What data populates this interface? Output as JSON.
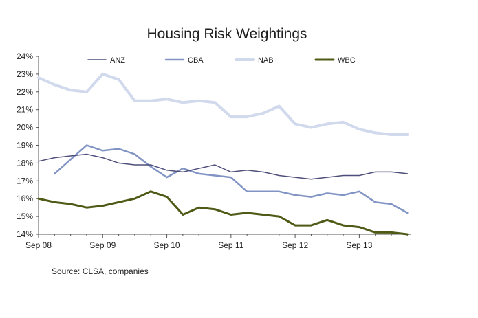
{
  "chart_data": {
    "type": "line",
    "title": "Housing Risk Weightings",
    "xlabel": "",
    "ylabel": "",
    "source": "Source: CLSA, companies",
    "ylim": [
      0.14,
      0.24
    ],
    "y_ticks": [
      "24%",
      "23%",
      "22%",
      "21%",
      "20%",
      "19%",
      "18%",
      "17%",
      "16%",
      "15%",
      "14%"
    ],
    "x_ticks": [
      "Sep 08",
      "Sep 09",
      "Sep 10",
      "Sep 11",
      "Sep 12",
      "Sep 13"
    ],
    "x_unit": "quarter",
    "x_range": [
      0,
      23
    ],
    "grid": false,
    "legend_position": "top",
    "series": [
      {
        "name": "ANZ",
        "color": "#4e4e7a",
        "x": [
          0,
          1,
          2,
          3,
          4,
          5,
          6,
          7,
          8,
          9,
          10,
          11,
          12,
          13,
          14,
          15,
          16,
          17,
          18,
          19,
          20,
          21,
          22,
          23
        ],
        "values": [
          0.181,
          0.183,
          0.184,
          0.185,
          0.183,
          0.18,
          0.179,
          0.179,
          0.176,
          0.175,
          0.177,
          0.179,
          0.175,
          0.176,
          0.175,
          0.173,
          0.172,
          0.171,
          0.172,
          0.173,
          0.173,
          0.175,
          0.175,
          0.174
        ]
      },
      {
        "name": "CBA",
        "color": "#8194c4",
        "x": [
          1,
          2,
          3,
          4,
          5,
          6,
          7,
          8,
          9,
          10,
          11,
          12,
          13,
          14,
          15,
          16,
          17,
          18,
          19,
          20,
          21,
          22,
          23
        ],
        "values": [
          0.174,
          0.182,
          0.19,
          0.187,
          0.188,
          0.185,
          0.178,
          0.172,
          0.177,
          0.174,
          0.173,
          0.172,
          0.164,
          0.164,
          0.164,
          0.162,
          0.161,
          0.163,
          0.162,
          0.164,
          0.158,
          0.157,
          0.152
        ]
      },
      {
        "name": "NAB",
        "color": "#d1d9ec",
        "x": [
          0,
          1,
          2,
          3,
          4,
          5,
          6,
          7,
          8,
          9,
          10,
          11,
          12,
          13,
          14,
          15,
          16,
          17,
          18,
          19,
          20,
          21,
          22,
          23
        ],
        "values": [
          0.228,
          0.224,
          0.221,
          0.22,
          0.23,
          0.227,
          0.215,
          0.215,
          0.216,
          0.214,
          0.215,
          0.214,
          0.206,
          0.206,
          0.208,
          0.212,
          0.202,
          0.2,
          0.202,
          0.203,
          0.199,
          0.197,
          0.196,
          0.196
        ]
      },
      {
        "name": "WBC",
        "color": "#4f5a16",
        "x": [
          0,
          1,
          2,
          3,
          4,
          5,
          6,
          7,
          8,
          9,
          10,
          11,
          12,
          13,
          14,
          15,
          16,
          17,
          18,
          19,
          20,
          21,
          22,
          23
        ],
        "values": [
          0.16,
          0.158,
          0.157,
          0.155,
          0.156,
          0.158,
          0.16,
          0.164,
          0.161,
          0.151,
          0.155,
          0.154,
          0.151,
          0.152,
          0.151,
          0.15,
          0.145,
          0.145,
          0.148,
          0.145,
          0.144,
          0.141,
          0.141,
          0.14
        ]
      }
    ]
  }
}
